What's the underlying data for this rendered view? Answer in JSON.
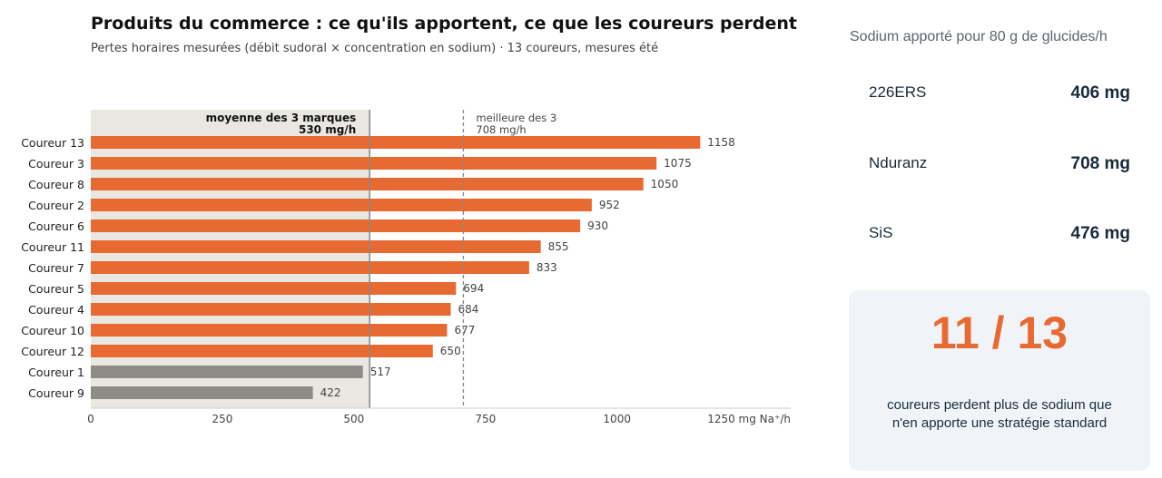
{
  "header": {
    "title": "Produits du commerce : ce qu'ils apportent, ce que les coureurs perdent",
    "subtitle": "Pertes horaires mesurées (débit sudoral × concentration en sodium) · 13 coureurs, mesures été"
  },
  "chart_data": {
    "type": "bar",
    "orientation": "horizontal",
    "categories": [
      "Coureur 13",
      "Coureur 3",
      "Coureur 8",
      "Coureur 2",
      "Coureur 6",
      "Coureur 11",
      "Coureur 7",
      "Coureur 5",
      "Coureur 4",
      "Coureur 10",
      "Coureur 12",
      "Coureur 1",
      "Coureur 9"
    ],
    "values": [
      1158,
      1075,
      1050,
      952,
      930,
      855,
      833,
      694,
      684,
      677,
      650,
      517,
      422
    ],
    "xlabel": "mg Na⁺/h",
    "xlim": [
      0,
      1330
    ],
    "xticks": [
      0,
      250,
      500,
      750,
      1000,
      1250
    ],
    "xtick_labels": [
      "0",
      "250",
      "500",
      "750",
      "1000",
      "1250 mg Na⁺/h"
    ],
    "grid": false,
    "colors": {
      "above": "#e86a33",
      "below": "#8e8c87",
      "band": "#e9e7e1",
      "line": "#888888"
    },
    "references": [
      {
        "value": 530,
        "style": "solid",
        "label": "moyenne des 3 marques",
        "sublabel": "530 mg/h"
      },
      {
        "value": 708,
        "style": "dashed",
        "label": "meilleure des 3",
        "sublabel": "708 mg/h"
      }
    ]
  },
  "sidebar": {
    "heading": "Sodium apporté pour 80 g de glucides/h",
    "brands": [
      {
        "name": "226ERS",
        "value": "406 mg"
      },
      {
        "name": "Nduranz",
        "value": "708 mg"
      },
      {
        "name": "SiS",
        "value": "476 mg"
      }
    ]
  },
  "stat": {
    "big": "11 / 13",
    "caption_line1": "coureurs perdent plus de sodium que",
    "caption_line2": "n'en apporte une stratégie standard"
  }
}
